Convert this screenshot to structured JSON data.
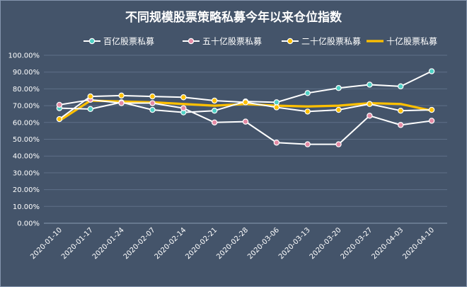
{
  "chart_data": {
    "type": "line",
    "title": "不同规模股票策略私募今年以来仓位指数",
    "x": [
      "2020-01-10",
      "2020-01-17",
      "2020-01-24",
      "2020-02-07",
      "2020-02-14",
      "2020-02-21",
      "2020-02-28",
      "2020-03-06",
      "2020-03-13",
      "2020-03-20",
      "2020-03-27",
      "2020-04-03",
      "2020-04-10"
    ],
    "y_ticks": [
      "0.00%",
      "10.00%",
      "20.00%",
      "30.00%",
      "40.00%",
      "50.00%",
      "60.00%",
      "70.00%",
      "80.00%",
      "90.00%",
      "100.00%"
    ],
    "ylim": [
      0,
      100
    ],
    "grid": true,
    "legend_position": "top",
    "series": [
      {
        "name": "百亿股票私募",
        "color": "#4FD1C5",
        "line_color": "#FFFFFF",
        "marker": true,
        "values": [
          68.5,
          68,
          72,
          67.5,
          66,
          67,
          72.5,
          72,
          77.5,
          80.5,
          82.5,
          81.5,
          90.5
        ]
      },
      {
        "name": "五十亿股票私募",
        "color": "#E58AA5",
        "line_color": "#FFFFFF",
        "marker": true,
        "values": [
          70.5,
          73.5,
          71.5,
          71.5,
          68.5,
          60,
          60.5,
          48,
          47,
          47,
          64,
          58.5,
          61
        ]
      },
      {
        "name": "二十亿股票私募",
        "color": "#FFC000",
        "line_color": "#FFFFFF",
        "marker": true,
        "values": [
          62,
          75.5,
          76,
          75.5,
          75,
          73,
          72,
          69,
          66.5,
          67.5,
          71,
          67,
          67.5
        ]
      },
      {
        "name": "十亿股票私募",
        "color": "#FFC000",
        "line_color": "#FFC000",
        "marker": false,
        "values": [
          61,
          73,
          72.5,
          72,
          71,
          70,
          71,
          70,
          69.5,
          70,
          71.5,
          71,
          67
        ]
      }
    ]
  }
}
